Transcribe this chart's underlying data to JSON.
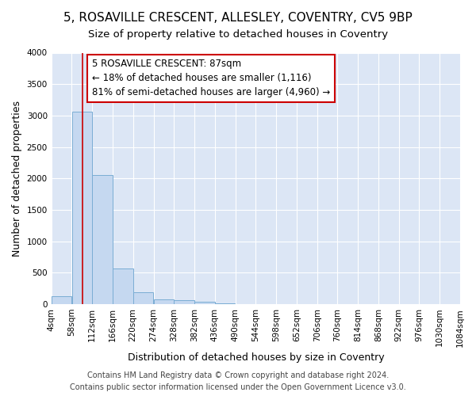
{
  "title_line1": "5, ROSAVILLE CRESCENT, ALLESLEY, COVENTRY, CV5 9BP",
  "title_line2": "Size of property relative to detached houses in Coventry",
  "xlabel": "Distribution of detached houses by size in Coventry",
  "ylabel": "Number of detached properties",
  "footer_line1": "Contains HM Land Registry data © Crown copyright and database right 2024.",
  "footer_line2": "Contains public sector information licensed under the Open Government Licence v3.0.",
  "bin_edges": [
    4,
    58,
    112,
    166,
    220,
    274,
    328,
    382,
    436,
    490,
    544,
    598,
    652,
    706,
    760,
    814,
    868,
    922,
    976,
    1030,
    1084
  ],
  "bin_labels": [
    "4sqm",
    "58sqm",
    "112sqm",
    "166sqm",
    "220sqm",
    "274sqm",
    "328sqm",
    "382sqm",
    "436sqm",
    "490sqm",
    "544sqm",
    "598sqm",
    "652sqm",
    "706sqm",
    "760sqm",
    "814sqm",
    "868sqm",
    "922sqm",
    "976sqm",
    "1030sqm",
    "1084sqm"
  ],
  "bar_heights": [
    130,
    3060,
    2060,
    565,
    195,
    80,
    60,
    40,
    15,
    5,
    3,
    2,
    1,
    0,
    0,
    0,
    0,
    0,
    0,
    0
  ],
  "bar_facecolor": "#c5d8f0",
  "bar_edgecolor": "#7aadd4",
  "vline_x": 87,
  "vline_color": "#cc0000",
  "vline_linewidth": 1.2,
  "annotation_text": "5 ROSAVILLE CRESCENT: 87sqm\n← 18% of detached houses are smaller (1,116)\n81% of semi-detached houses are larger (4,960) →",
  "annotation_box_edgecolor": "#cc0000",
  "ylim": [
    0,
    4000
  ],
  "yticks": [
    0,
    500,
    1000,
    1500,
    2000,
    2500,
    3000,
    3500,
    4000
  ],
  "plot_bg_color": "#dce6f5",
  "fig_bg_color": "#ffffff",
  "grid_color": "#ffffff",
  "title_fontsize": 11,
  "subtitle_fontsize": 9.5,
  "axis_label_fontsize": 9,
  "tick_fontsize": 7.5,
  "footer_fontsize": 7,
  "annotation_fontsize": 8.5
}
